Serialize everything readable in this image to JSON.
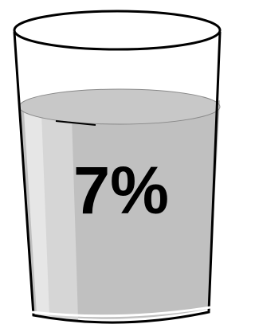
{
  "label": "7%"
}
